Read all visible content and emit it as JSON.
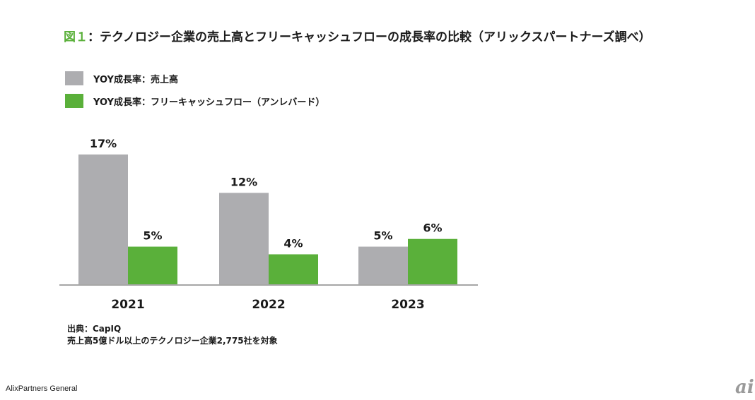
{
  "title": {
    "figure_label": "図１",
    "text": "：テクノロジー企業の売上高とフリーキャッシュフローの成長率の比較（アリックスパートナーズ調べ）"
  },
  "colors": {
    "accent": "#5ab03a",
    "sales": "#adadb0",
    "fcf": "#5ab03a",
    "axis": "#a6a6a6"
  },
  "chart_data": {
    "type": "bar",
    "categories": [
      "2021",
      "2022",
      "2023"
    ],
    "series": [
      {
        "name": "YOY成長率：売上高",
        "values": [
          17,
          12,
          5
        ],
        "labels": [
          "17%",
          "12%",
          "5%"
        ]
      },
      {
        "name": "YOY成長率：フリーキャッシュフロー（アンレバード）",
        "values": [
          5,
          4,
          6
        ],
        "labels": [
          "5%",
          "4%",
          "6%"
        ]
      }
    ],
    "ylim": [
      0,
      17
    ],
    "legend_position": "top-left",
    "grid": false
  },
  "source": {
    "line1": "出典：CapIQ",
    "line2": "売上高5億ドル以上のテクノロジー企業2,775社を対象"
  },
  "footer": "AlixPartners General",
  "logo": "ai"
}
